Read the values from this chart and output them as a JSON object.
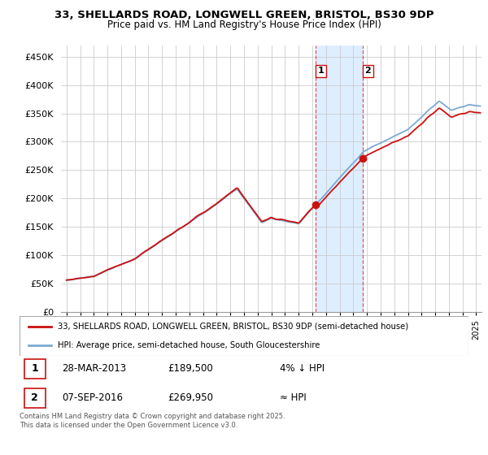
{
  "title_line1": "33, SHELLARDS ROAD, LONGWELL GREEN, BRISTOL, BS30 9DP",
  "title_line2": "Price paid vs. HM Land Registry's House Price Index (HPI)",
  "ylim": [
    0,
    470000
  ],
  "yticks": [
    0,
    50000,
    100000,
    150000,
    200000,
    250000,
    300000,
    350000,
    400000,
    450000
  ],
  "ytick_labels": [
    "£0",
    "£50K",
    "£100K",
    "£150K",
    "£200K",
    "£250K",
    "£300K",
    "£350K",
    "£400K",
    "£450K"
  ],
  "legend_line1": "33, SHELLARDS ROAD, LONGWELL GREEN, BRISTOL, BS30 9DP (semi-detached house)",
  "legend_line2": "HPI: Average price, semi-detached house, South Gloucestershire",
  "annotation1_date": "28-MAR-2013",
  "annotation1_price": "£189,500",
  "annotation1_hpi": "4% ↓ HPI",
  "annotation2_date": "07-SEP-2016",
  "annotation2_price": "£269,950",
  "annotation2_hpi": "≈ HPI",
  "footer": "Contains HM Land Registry data © Crown copyright and database right 2025.\nThis data is licensed under the Open Government Licence v3.0.",
  "sale1_x": 2013.23,
  "sale1_y": 189500,
  "sale2_x": 2016.68,
  "sale2_y": 269950,
  "hpi_color": "#7aaad0",
  "price_color": "#cc1111",
  "dot_color": "#cc1111",
  "shade_color": "#ddeeff",
  "xlim_left": 1994.6,
  "xlim_right": 2025.4
}
